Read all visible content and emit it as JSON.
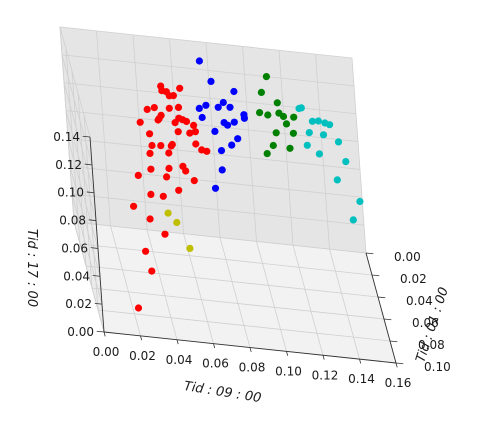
{
  "chart_data": {
    "type": "scatter",
    "projection": "3d",
    "title": "",
    "xlabel": "Tid : 09 : 00",
    "ylabel": "Tid : 01 : 00",
    "zlabel": "Tid : 17 : 00",
    "xlim": [
      0.0,
      0.16
    ],
    "ylim": [
      0.0,
      0.1
    ],
    "zlim": [
      0.0,
      0.14
    ],
    "x_ticks": [
      "0.00",
      "0.02",
      "0.04",
      "0.06",
      "0.08",
      "0.10",
      "0.12",
      "0.14",
      "0.16"
    ],
    "y_ticks": [
      "0.00",
      "0.02",
      "0.04",
      "0.06",
      "0.08",
      "0.10"
    ],
    "z_ticks": [
      "0.00",
      "0.02",
      "0.04",
      "0.06",
      "0.08",
      "0.10",
      "0.12",
      "0.14"
    ],
    "grid": true,
    "legend": "none",
    "series": [
      {
        "color": "#ff0000",
        "points": [
          [
            0.045,
            0.05,
            0.12
          ],
          [
            0.055,
            0.04,
            0.13
          ],
          [
            0.05,
            0.06,
            0.11
          ],
          [
            0.04,
            0.05,
            0.1
          ],
          [
            0.06,
            0.05,
            0.12
          ],
          [
            0.05,
            0.03,
            0.125
          ],
          [
            0.035,
            0.07,
            0.08
          ],
          [
            0.065,
            0.04,
            0.11
          ],
          [
            0.045,
            0.045,
            0.115
          ],
          [
            0.05,
            0.055,
            0.105
          ],
          [
            0.055,
            0.06,
            0.095
          ],
          [
            0.04,
            0.04,
            0.118
          ],
          [
            0.06,
            0.03,
            0.128
          ],
          [
            0.045,
            0.065,
            0.09
          ],
          [
            0.03,
            0.06,
            0.085
          ],
          [
            0.07,
            0.05,
            0.1
          ],
          [
            0.05,
            0.05,
            0.14
          ],
          [
            0.04,
            0.08,
            0.06
          ],
          [
            0.03,
            0.09,
            0.04
          ],
          [
            0.02,
            0.1,
            0.02
          ],
          [
            0.025,
            0.07,
            0.07
          ],
          [
            0.055,
            0.05,
            0.112
          ],
          [
            0.048,
            0.058,
            0.102
          ],
          [
            0.052,
            0.042,
            0.122
          ],
          [
            0.062,
            0.045,
            0.108
          ],
          [
            0.038,
            0.055,
            0.098
          ],
          [
            0.058,
            0.035,
            0.118
          ],
          [
            0.043,
            0.048,
            0.126
          ],
          [
            0.047,
            0.062,
            0.094
          ],
          [
            0.066,
            0.038,
            0.104
          ],
          [
            0.035,
            0.045,
            0.112
          ],
          [
            0.057,
            0.055,
            0.088
          ],
          [
            0.049,
            0.035,
            0.132
          ],
          [
            0.061,
            0.058,
            0.084
          ],
          [
            0.042,
            0.068,
            0.078
          ],
          [
            0.054,
            0.047,
            0.116
          ],
          [
            0.037,
            0.062,
            0.092
          ],
          [
            0.068,
            0.044,
            0.096
          ],
          [
            0.046,
            0.052,
            0.124
          ],
          [
            0.059,
            0.041,
            0.114
          ],
          [
            0.051,
            0.066,
            0.082
          ],
          [
            0.033,
            0.075,
            0.066
          ],
          [
            0.028,
            0.085,
            0.05
          ],
          [
            0.064,
            0.052,
            0.106
          ],
          [
            0.053,
            0.038,
            0.128
          ],
          [
            0.044,
            0.057,
            0.106
          ],
          [
            0.056,
            0.049,
            0.121
          ],
          [
            0.039,
            0.051,
            0.109
          ]
        ]
      },
      {
        "color": "#0000ff",
        "points": [
          [
            0.075,
            0.02,
            0.11
          ],
          [
            0.085,
            0.03,
            0.105
          ],
          [
            0.08,
            0.01,
            0.12
          ],
          [
            0.09,
            0.02,
            0.1
          ],
          [
            0.07,
            0.03,
            0.115
          ],
          [
            0.085,
            0.015,
            0.095
          ],
          [
            0.08,
            0.035,
            0.09
          ],
          [
            0.095,
            0.025,
            0.11
          ],
          [
            0.075,
            0.005,
            0.13
          ],
          [
            0.088,
            0.022,
            0.112
          ],
          [
            0.078,
            0.028,
            0.098
          ],
          [
            0.082,
            0.018,
            0.108
          ],
          [
            0.092,
            0.012,
            0.116
          ],
          [
            0.072,
            0.024,
            0.104
          ],
          [
            0.086,
            0.034,
            0.094
          ],
          [
            0.096,
            0.018,
            0.102
          ],
          [
            0.079,
            0.04,
            0.08
          ],
          [
            0.074,
            0.045,
            0.07
          ],
          [
            0.084,
            0.026,
            0.118
          ],
          [
            0.09,
            0.03,
            0.096
          ]
        ]
      },
      {
        "color": "#008000",
        "points": [
          [
            0.11,
            0.01,
            0.1
          ],
          [
            0.115,
            0.02,
            0.11
          ],
          [
            0.105,
            0.015,
            0.105
          ],
          [
            0.12,
            0.01,
            0.095
          ],
          [
            0.11,
            0.025,
            0.09
          ],
          [
            0.118,
            0.015,
            0.104
          ],
          [
            0.108,
            0.005,
            0.112
          ],
          [
            0.122,
            0.022,
            0.098
          ],
          [
            0.113,
            0.018,
            0.094
          ],
          [
            0.116,
            0.008,
            0.108
          ],
          [
            0.106,
            0.028,
            0.086
          ],
          [
            0.124,
            0.012,
            0.102
          ],
          [
            0.112,
            0.0,
            0.12
          ],
          [
            0.119,
            0.026,
            0.09
          ]
        ]
      },
      {
        "color": "#00bfbf",
        "points": [
          [
            0.13,
            0.0,
            0.1
          ],
          [
            0.14,
            0.01,
            0.09
          ],
          [
            0.135,
            0.005,
            0.095
          ],
          [
            0.145,
            0.0,
            0.09
          ],
          [
            0.15,
            0.02,
            0.08
          ],
          [
            0.13,
            0.015,
            0.085
          ],
          [
            0.138,
            0.008,
            0.098
          ],
          [
            0.142,
            0.004,
            0.094
          ],
          [
            0.132,
            0.012,
            0.092
          ],
          [
            0.148,
            0.01,
            0.086
          ],
          [
            0.136,
            0.018,
            0.082
          ],
          [
            0.155,
            0.03,
            0.06
          ],
          [
            0.15,
            0.035,
            0.05
          ],
          [
            0.144,
            0.025,
            0.07
          ],
          [
            0.128,
            0.006,
            0.104
          ]
        ]
      },
      {
        "color": "#bfbf00",
        "points": [
          [
            0.045,
            0.06,
            0.06
          ],
          [
            0.05,
            0.055,
            0.05
          ],
          [
            0.055,
            0.065,
            0.04
          ]
        ]
      }
    ]
  }
}
